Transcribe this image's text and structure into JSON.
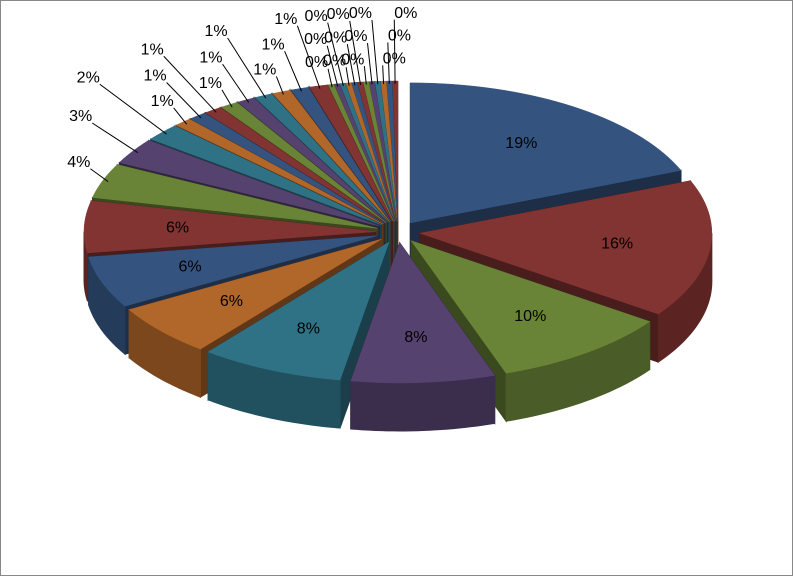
{
  "chart_data": {
    "type": "pie3d",
    "explode": true,
    "values": [
      19,
      16,
      10,
      8,
      8,
      6,
      6,
      6,
      4,
      3,
      2,
      1,
      1,
      1,
      1,
      1,
      1,
      1,
      1,
      1,
      0.3,
      0.3,
      0.3,
      0.3,
      0.3,
      0.3,
      0.3,
      0.3,
      0.3,
      0.3,
      0.3,
      0.3
    ],
    "value_labels": [
      "19%",
      "16%",
      "10%",
      "8%",
      "8%",
      "6%",
      "6%",
      "6%",
      "4%",
      "3%",
      "2%",
      "1%",
      "1%",
      "1%",
      "1%",
      "1%",
      "1%",
      "1%",
      "1%",
      "1%",
      "0%",
      "0%",
      "0%",
      "0%",
      "0%",
      "0%",
      "0%",
      "0%",
      "0%",
      "0%",
      "0%",
      "0%"
    ],
    "colors": [
      "#34547f",
      "#823432",
      "#6a8437",
      "#55426e",
      "#2f7286",
      "#b1662a"
    ]
  }
}
